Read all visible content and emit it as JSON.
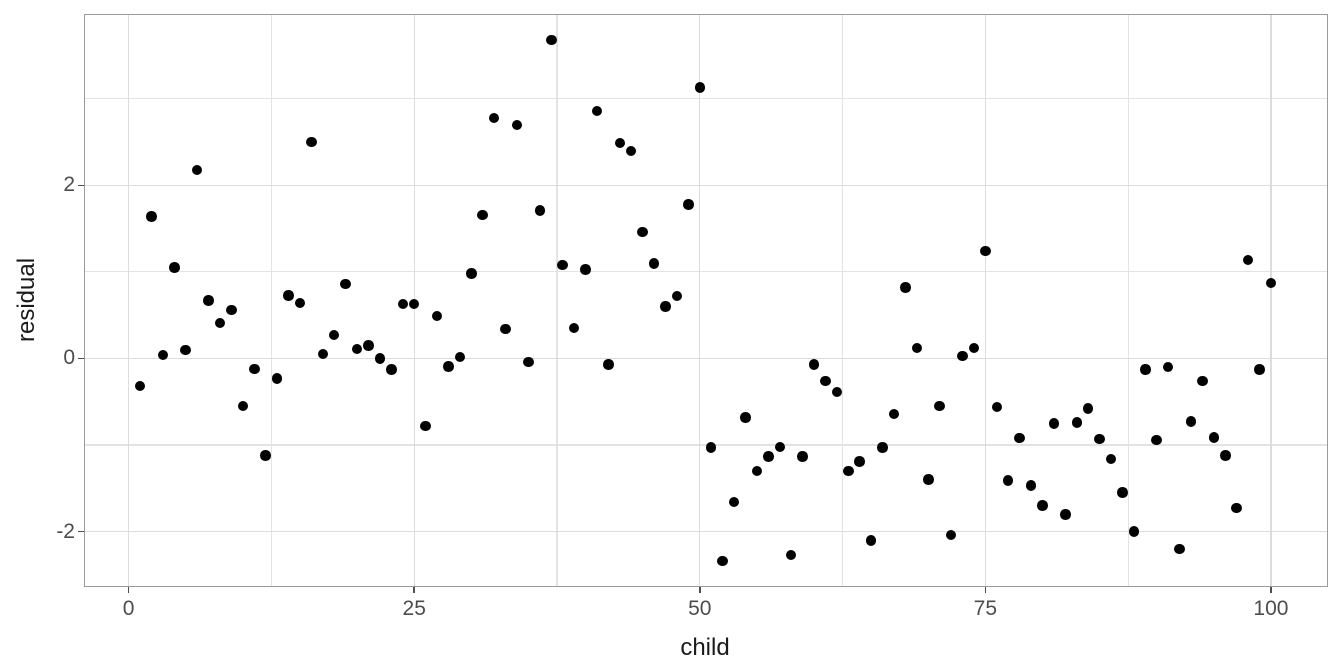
{
  "chart_data": {
    "type": "scatter",
    "title": "",
    "xlabel": "child",
    "ylabel": "residual",
    "legend": false,
    "grid": true,
    "background": "#ffffff",
    "panel_border_color": "#9a9a9a",
    "major_grid_color": "#dcdcdc",
    "minor_grid_color": "#e3e3e3",
    "point_color": "#000000",
    "tick_label_color": "#4d4d4d",
    "axis_title_color": "#1a1a1a",
    "xlim": [
      -3.95,
      104.95
    ],
    "ylim": [
      -2.64,
      3.98
    ],
    "x_ticks": [
      0,
      25,
      50,
      75,
      100
    ],
    "x_tick_labels": [
      "0",
      "25",
      "50",
      "75",
      "100"
    ],
    "x_minor_ticks": [
      12.5,
      37.5,
      62.5,
      87.5
    ],
    "y_ticks": [
      -2,
      0,
      2
    ],
    "y_tick_labels": [
      "-2",
      "0",
      "2"
    ],
    "y_minor_ticks": [
      -1,
      1,
      3
    ],
    "series": [
      {
        "name": "residuals",
        "x": [
          1,
          2,
          3,
          4,
          5,
          6,
          7,
          8,
          9,
          10,
          11,
          12,
          13,
          14,
          15,
          16,
          17,
          18,
          19,
          20,
          21,
          22,
          23,
          24,
          25,
          26,
          27,
          28,
          29,
          30,
          31,
          32,
          33,
          34,
          35,
          36,
          37,
          38,
          39,
          40,
          41,
          42,
          43,
          44,
          45,
          46,
          47,
          48,
          49,
          50,
          51,
          52,
          53,
          54,
          55,
          56,
          57,
          58,
          59,
          60,
          61,
          62,
          63,
          64,
          65,
          66,
          67,
          68,
          69,
          70,
          71,
          72,
          73,
          74,
          75,
          76,
          77,
          78,
          79,
          80,
          81,
          82,
          83,
          84,
          85,
          86,
          87,
          88,
          89,
          90,
          91,
          92,
          93,
          94,
          95,
          96,
          97,
          98,
          99,
          100
        ],
        "y": [
          -0.32,
          1.64,
          0.04,
          1.05,
          0.1,
          2.18,
          0.67,
          0.41,
          0.56,
          -0.55,
          -0.12,
          -1.12,
          -0.23,
          0.73,
          0.64,
          2.5,
          0.05,
          0.27,
          0.86,
          0.11,
          0.15,
          0.0,
          -0.13,
          0.63,
          0.63,
          -0.78,
          0.49,
          -0.09,
          0.02,
          0.98,
          1.66,
          2.78,
          0.34,
          2.7,
          -0.04,
          1.71,
          3.68,
          1.08,
          0.35,
          1.03,
          2.86,
          -0.07,
          2.49,
          2.4,
          1.46,
          1.1,
          0.6,
          0.72,
          1.78,
          3.13,
          -1.03,
          -2.34,
          -1.66,
          -0.68,
          -1.3,
          -1.13,
          -1.02,
          -2.27,
          -1.13,
          -0.07,
          -0.26,
          -0.39,
          -1.3,
          -1.19,
          -2.1,
          -1.03,
          -0.64,
          0.82,
          0.12,
          -1.4,
          -0.55,
          -2.04,
          0.03,
          0.12,
          1.24,
          -0.56,
          -1.41,
          -0.92,
          -1.47,
          -1.7,
          -0.75,
          -1.8,
          -0.74,
          -0.58,
          -0.93,
          -1.16,
          -1.55,
          -2.0,
          -0.13,
          -0.94,
          -0.1,
          -2.2,
          -0.73,
          -0.26,
          -0.91,
          -1.12,
          -1.73,
          1.14,
          -0.13,
          0.87
        ]
      }
    ]
  }
}
